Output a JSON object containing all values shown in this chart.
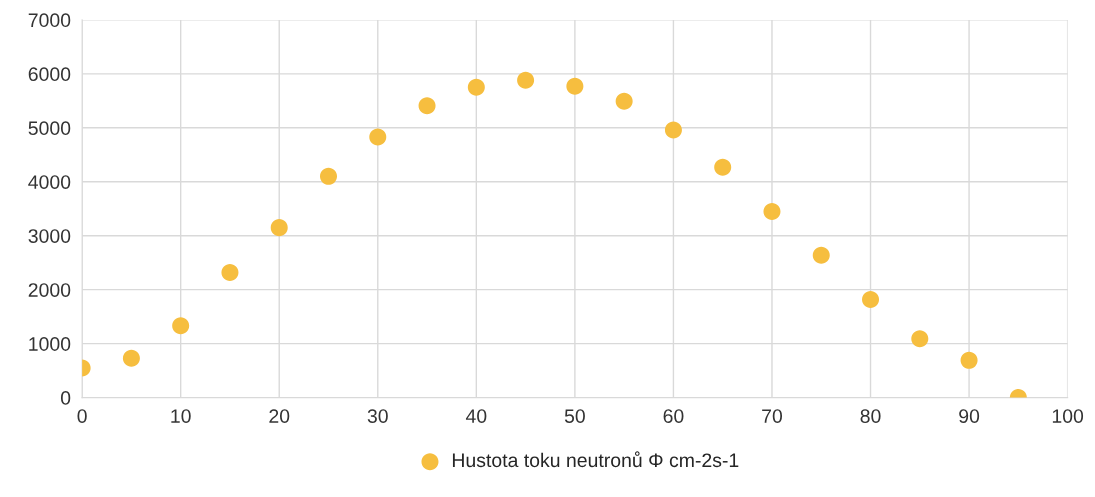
{
  "chart_data": {
    "type": "scatter",
    "x": [
      0,
      5,
      10,
      15,
      20,
      25,
      30,
      35,
      40,
      45,
      50,
      55,
      60,
      65,
      70,
      75,
      80,
      85,
      90,
      95
    ],
    "series": [
      {
        "name": "Hustota toku neutronů Φ cm-2s-1",
        "color": "#f6be3f",
        "values": [
          550,
          730,
          1330,
          2320,
          3150,
          4100,
          4830,
          5410,
          5750,
          5880,
          5770,
          5490,
          4960,
          4270,
          3450,
          2640,
          1820,
          1090,
          690,
          0
        ]
      }
    ],
    "xlim": [
      0,
      100
    ],
    "xticks": [
      0,
      10,
      20,
      30,
      40,
      50,
      60,
      70,
      80,
      90,
      100
    ],
    "ylim": [
      0,
      7000
    ],
    "yticks": [
      0,
      1000,
      2000,
      3000,
      4000,
      5000,
      6000,
      7000
    ],
    "grid": true,
    "legend": "bottom",
    "marker": "circle"
  }
}
